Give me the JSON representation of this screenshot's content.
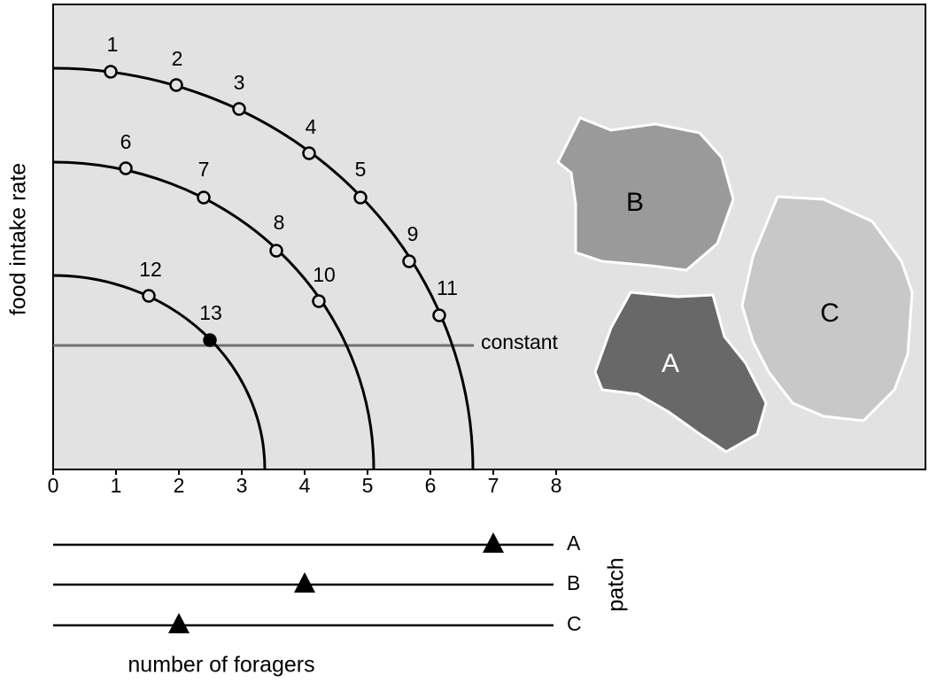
{
  "axis": {
    "y_label": "food intake rate",
    "x_label": "number of foragers",
    "ticks": [
      0,
      1,
      2,
      3,
      4,
      5,
      6,
      7,
      8
    ]
  },
  "points": [
    {
      "label": "1"
    },
    {
      "label": "2"
    },
    {
      "label": "3"
    },
    {
      "label": "4"
    },
    {
      "label": "5"
    },
    {
      "label": "6"
    },
    {
      "label": "7"
    },
    {
      "label": "8"
    },
    {
      "label": "9"
    },
    {
      "label": "10"
    },
    {
      "label": "11"
    },
    {
      "label": "12"
    },
    {
      "label": "13"
    }
  ],
  "constant_label": "constant",
  "patches": [
    {
      "label": "B"
    },
    {
      "label": "C"
    },
    {
      "label": "A"
    }
  ],
  "patch_axis": {
    "label": "patch",
    "rows": [
      {
        "label": "A",
        "foragers": 7
      },
      {
        "label": "B",
        "foragers": 4
      },
      {
        "label": "C",
        "foragers": 2
      }
    ]
  }
}
